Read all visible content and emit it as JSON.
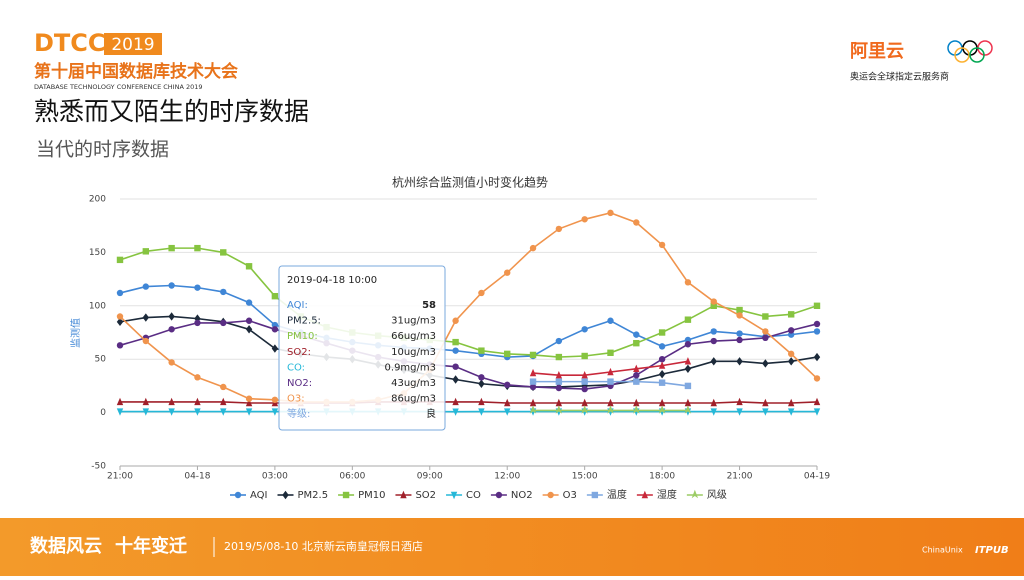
{
  "header": {
    "logo": "DTCC",
    "logo_year": "2019",
    "conference": "第十届中国数据库技术大会",
    "conference_en": "DATABASE TECHNOLOGY CONFERENCE CHINA 2019",
    "sponsor": "阿里云",
    "sponsor_note": "奥运会全球指定云服务商"
  },
  "title": "熟悉而又陌生的时序数据",
  "subtitle": "当代的时序数据",
  "chart_data": {
    "type": "line",
    "title": "杭州综合监测值小时变化趋势",
    "y_label": "监测值",
    "categories": [
      "21:00",
      null,
      null,
      "04-18",
      null,
      null,
      "03:00",
      null,
      null,
      "06:00",
      null,
      null,
      "09:00",
      null,
      null,
      "12:00",
      null,
      null,
      "15:00",
      null,
      null,
      "18:00",
      null,
      null,
      "21:00",
      null,
      null,
      "04-19"
    ],
    "ylim": [
      -50,
      200
    ],
    "yticks": [
      -50,
      0,
      50,
      100,
      150,
      200
    ],
    "grid": true,
    "series": [
      {
        "name": "AQI",
        "color": "#3f86d6",
        "symbol": "circle",
        "values": [
          112,
          118,
          119,
          117,
          113,
          103,
          82,
          75,
          70,
          66,
          63,
          61,
          60,
          58,
          55,
          52,
          53,
          67,
          78,
          86,
          73,
          62,
          68,
          76,
          74,
          71,
          73,
          76
        ]
      },
      {
        "name": "PM2.5",
        "color": "#1c2a3a",
        "symbol": "diamond",
        "values": [
          85,
          89,
          90,
          88,
          85,
          78,
          60,
          55,
          52,
          50,
          45,
          40,
          35,
          31,
          27,
          25,
          24,
          24,
          25,
          26,
          30,
          36,
          41,
          48,
          48,
          46,
          48,
          52
        ]
      },
      {
        "name": "PM10",
        "color": "#86c440",
        "symbol": "square",
        "values": [
          143,
          151,
          154,
          154,
          150,
          137,
          109,
          90,
          80,
          75,
          72,
          70,
          68,
          66,
          58,
          55,
          54,
          52,
          53,
          56,
          65,
          75,
          87,
          100,
          96,
          90,
          92,
          100
        ]
      },
      {
        "name": "SO2",
        "color": "#a0202a",
        "symbol": "triangle",
        "values": [
          10,
          10,
          10,
          10,
          10,
          9,
          9,
          9,
          9,
          9,
          10,
          10,
          10,
          10,
          10,
          9,
          9,
          9,
          9,
          9,
          9,
          9,
          9,
          9,
          10,
          9,
          9,
          10
        ]
      },
      {
        "name": "CO",
        "color": "#25b8d8",
        "symbol": "triangle-down",
        "values": [
          1,
          1,
          1,
          1,
          1,
          1,
          1,
          1,
          1,
          1,
          1,
          1,
          1,
          0.9,
          1,
          1,
          1,
          1,
          1,
          1,
          1,
          1,
          1,
          1,
          1,
          1,
          1,
          1
        ]
      },
      {
        "name": "NO2",
        "color": "#5a2d84",
        "symbol": "circle",
        "values": [
          63,
          70,
          78,
          84,
          84,
          86,
          78,
          72,
          65,
          58,
          52,
          48,
          45,
          43,
          33,
          26,
          24,
          23,
          22,
          25,
          35,
          50,
          64,
          67,
          68,
          70,
          77,
          83
        ]
      },
      {
        "name": "O3",
        "color": "#f0944d",
        "symbol": "circle",
        "values": [
          90,
          67,
          47,
          33,
          24,
          13,
          12,
          10,
          10,
          10,
          12,
          18,
          40,
          86,
          112,
          131,
          154,
          172,
          181,
          187,
          178,
          157,
          122,
          104,
          91,
          76,
          55,
          32
        ]
      },
      {
        "name": "温度",
        "color": "#7fa8e0",
        "symbol": "square",
        "values": [
          null,
          null,
          null,
          null,
          null,
          null,
          null,
          null,
          null,
          null,
          null,
          null,
          null,
          null,
          null,
          null,
          29,
          29,
          29,
          29,
          29,
          28,
          25,
          null,
          null,
          null,
          null,
          null
        ]
      },
      {
        "name": "湿度",
        "color": "#c8283a",
        "symbol": "triangle",
        "values": [
          null,
          null,
          null,
          null,
          null,
          null,
          null,
          null,
          null,
          null,
          null,
          null,
          null,
          null,
          null,
          null,
          37,
          35,
          35,
          38,
          41,
          44,
          48,
          null,
          null,
          null,
          null,
          null
        ]
      },
      {
        "name": "风级",
        "color": "#9ccc65",
        "symbol": "arrow",
        "values": [
          null,
          null,
          null,
          null,
          null,
          null,
          null,
          null,
          null,
          null,
          null,
          null,
          null,
          null,
          null,
          null,
          2,
          2,
          2,
          2,
          2,
          2,
          2,
          null,
          null,
          null,
          null,
          null
        ]
      }
    ],
    "tooltip": {
      "time": "2019-04-18 10:00",
      "rows": [
        {
          "name": "AQI:",
          "value": "58"
        },
        {
          "name": "PM2.5:",
          "value": "31ug/m3"
        },
        {
          "name": "PM10:",
          "value": "66ug/m3"
        },
        {
          "name": "SO2:",
          "value": "10ug/m3"
        },
        {
          "name": "CO:",
          "value": "0.9mg/m3"
        },
        {
          "name": "NO2:",
          "value": "43ug/m3"
        },
        {
          "name": "O3:",
          "value": "86ug/m3"
        },
        {
          "name": "等级:",
          "value": "良"
        }
      ]
    }
  },
  "footer": {
    "slogan": "数据风云",
    "slogan2": "十年变迁",
    "date_place": "2019/5/08-10  北京新云南皇冠假日酒店",
    "partner1": "ChinaUnix",
    "partner2": "ITPUB"
  }
}
